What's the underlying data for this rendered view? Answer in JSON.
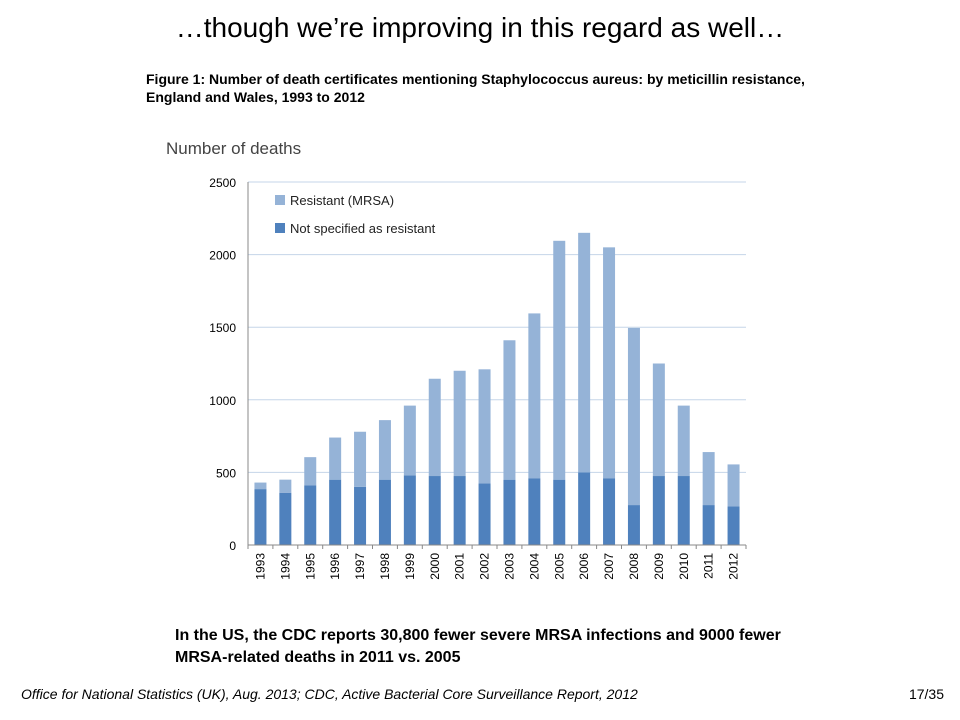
{
  "slide": {
    "title": "…though we’re improving in this regard as well…",
    "figure_caption": "Figure 1: Number of death certificates mentioning Staphylococcus aureus: by meticillin resistance, England and Wales, 1993 to 2012",
    "note": "In the US, the CDC reports 30,800 fewer severe MRSA infections and 9000 fewer MRSA-related deaths in 2011 vs. 2005",
    "source": "Office for National Statistics (UK), Aug. 2013; CDC, Active Bacterial Core Surveillance Report, 2012",
    "page_number": "17/35"
  },
  "chart_data": {
    "type": "bar",
    "stacked": true,
    "title": "",
    "ylabel": "Number of deaths",
    "xlabel": "",
    "ylim": [
      0,
      2500
    ],
    "yticks": [
      0,
      500,
      1000,
      1500,
      2000,
      2500
    ],
    "grid": true,
    "legend_position": "top-left",
    "categories": [
      "1993",
      "1994",
      "1995",
      "1996",
      "1997",
      "1998",
      "1999",
      "2000",
      "2001",
      "2002",
      "2003",
      "2004",
      "2005",
      "2006",
      "2007",
      "2008",
      "2009",
      "2010",
      "2011",
      "2012"
    ],
    "series": [
      {
        "name": "Not specified as resistant",
        "color": "#4f81bd",
        "values": [
          385,
          360,
          410,
          450,
          400,
          450,
          480,
          475,
          475,
          425,
          450,
          460,
          450,
          500,
          460,
          275,
          475,
          475,
          275,
          265
        ]
      },
      {
        "name": "Resistant (MRSA)",
        "color": "#95b3d7",
        "values": [
          45,
          90,
          195,
          290,
          380,
          410,
          480,
          670,
          725,
          785,
          960,
          1135,
          1645,
          1650,
          1590,
          1220,
          775,
          485,
          365,
          290
        ]
      }
    ],
    "legend": [
      "Resistant (MRSA)",
      "Not specified as resistant"
    ]
  }
}
